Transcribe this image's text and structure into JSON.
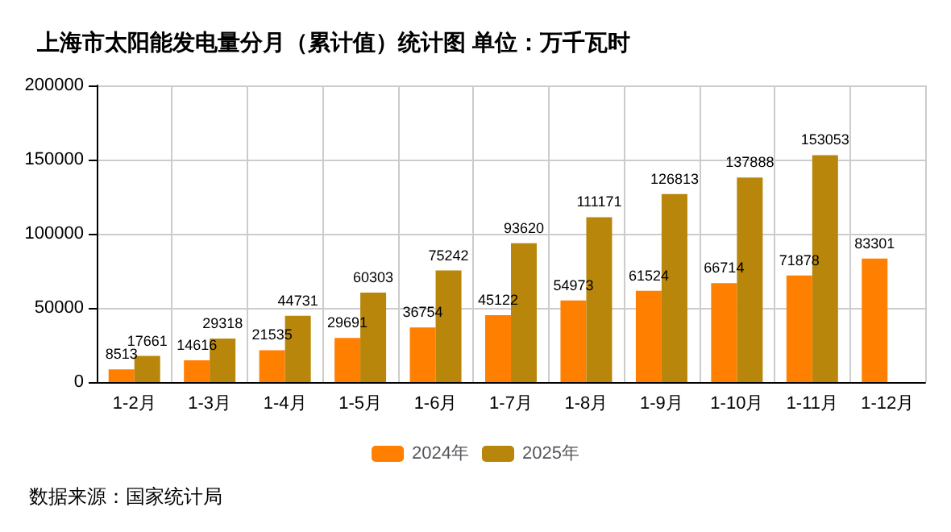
{
  "chart_data": {
    "type": "bar",
    "title": "上海市太阳能发电量分月（累计值）统计图 单位：万千瓦时",
    "categories": [
      "1-2月",
      "1-3月",
      "1-4月",
      "1-5月",
      "1-6月",
      "1-7月",
      "1-8月",
      "1-9月",
      "1-10月",
      "1-11月",
      "1-12月"
    ],
    "series": [
      {
        "name": "2024年",
        "color": "#ff7f00",
        "values": [
          8513,
          14616,
          21535,
          29691,
          36754,
          45122,
          54973,
          61524,
          66714,
          71878,
          83301
        ]
      },
      {
        "name": "2025年",
        "color": "#b8860b",
        "values": [
          17661,
          29318,
          44731,
          60303,
          75242,
          93620,
          111171,
          126813,
          137888,
          153053,
          null
        ]
      }
    ],
    "ylim": [
      0,
      200000
    ],
    "yticks": [
      0,
      50000,
      100000,
      150000,
      200000
    ],
    "grid": true,
    "legend": "bottom",
    "data_labels": true,
    "annotations": [
      "数据来源：国家统计局"
    ]
  }
}
